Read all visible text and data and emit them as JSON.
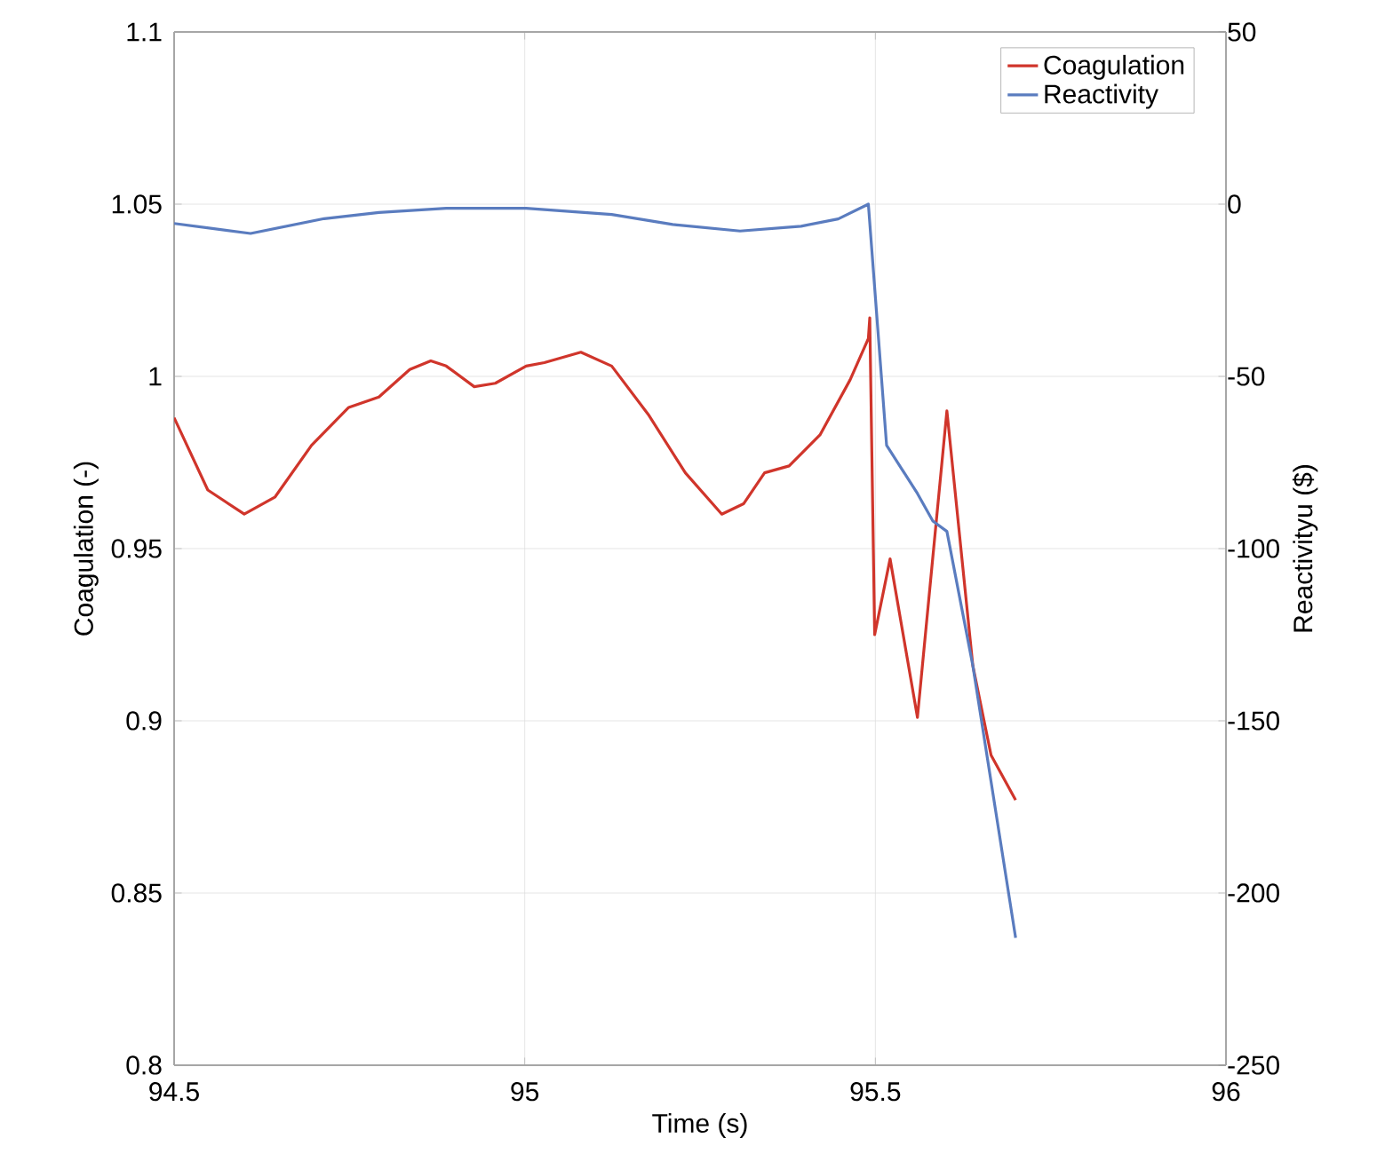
{
  "chart_data": {
    "type": "line",
    "xlabel": "Time (s)",
    "ylabel": "Coagulation (-)",
    "y2label": "Reactivityu ($)",
    "xlim": [
      94.5,
      96
    ],
    "xticks": [
      94.5,
      95,
      95.5,
      96
    ],
    "ylim": [
      0.8,
      1.1
    ],
    "yticks": [
      0.8,
      0.85,
      0.9,
      0.95,
      1,
      1.05,
      1.1
    ],
    "y2lim": [
      -250,
      50
    ],
    "y2ticks": [
      -250,
      -200,
      -150,
      -100,
      -50,
      0,
      50
    ],
    "grid": true,
    "legend": "top right",
    "line_style": "solid",
    "marker": "none",
    "series": [
      {
        "name": "Coagulation",
        "color": "#d0352b",
        "x": [
          94.5,
          94.548,
          94.6,
          94.644,
          94.696,
          94.749,
          94.792,
          94.836,
          94.866,
          94.888,
          94.928,
          94.958,
          95.002,
          95.028,
          95.08,
          95.124,
          95.176,
          95.229,
          95.281,
          95.312,
          95.342,
          95.377,
          95.421,
          95.464,
          95.49,
          95.492,
          95.499,
          95.521,
          95.56,
          95.602,
          95.639,
          95.665,
          95.7
        ],
        "values": [
          0.988,
          0.967,
          0.96,
          0.965,
          0.98,
          0.991,
          0.994,
          1.002,
          1.0045,
          1.003,
          0.997,
          0.998,
          1.003,
          1.004,
          1.007,
          1.003,
          0.989,
          0.972,
          0.96,
          0.963,
          0.972,
          0.974,
          0.983,
          0.999,
          1.011,
          1.017,
          0.925,
          0.947,
          0.901,
          0.99,
          0.916,
          0.89,
          0.877
        ]
      },
      {
        "name": "Reactivity",
        "color": "#5a7cbf",
        "axis": "y2",
        "x": [
          94.5,
          94.609,
          94.714,
          94.792,
          94.888,
          95.002,
          95.124,
          95.211,
          95.307,
          95.394,
          95.447,
          95.49,
          95.516,
          95.56,
          95.582,
          95.602,
          95.639,
          95.7
        ],
        "values": [
          -5.6,
          -8.5,
          -4.2,
          -2.4,
          -1.2,
          -1.2,
          -3,
          -5.9,
          -7.8,
          -6.4,
          -4.3,
          0,
          -70,
          -84,
          -92,
          -95,
          -134,
          -213
        ]
      }
    ]
  }
}
